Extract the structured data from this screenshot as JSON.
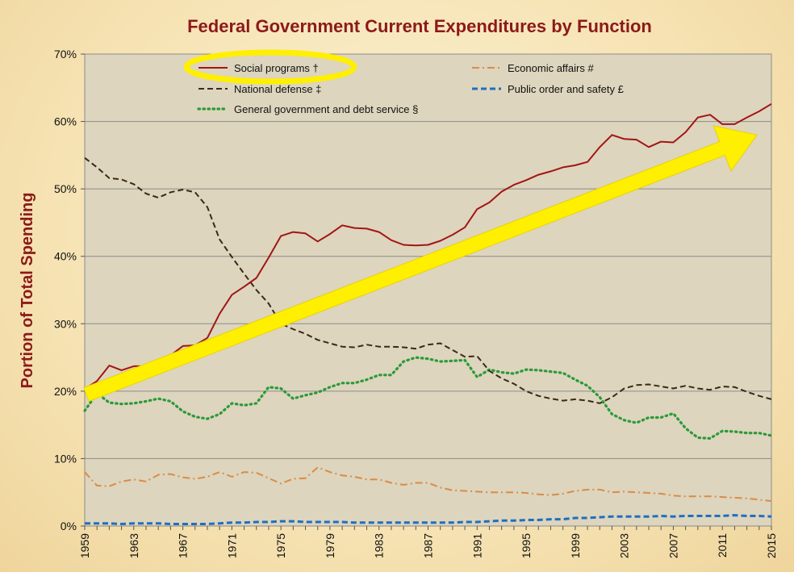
{
  "chart_data": {
    "type": "line",
    "title": "Federal Government Current Expenditures by Function",
    "ylabel": "Portion of Total Spending",
    "xlabel": "",
    "xlim": [
      1959,
      2015
    ],
    "ylim": [
      0,
      70
    ],
    "ytick_labels": [
      "0%",
      "10%",
      "20%",
      "30%",
      "40%",
      "50%",
      "60%",
      "70%"
    ],
    "xtick_labels": [
      "1959",
      "1963",
      "1967",
      "1971",
      "1975",
      "1979",
      "1983",
      "1987",
      "1991",
      "1995",
      "1999",
      "2003",
      "2007",
      "2011",
      "2015"
    ],
    "grid": "horizontal",
    "plot_background": "#ddd5bd",
    "x": [
      1959,
      1960,
      1961,
      1962,
      1963,
      1964,
      1965,
      1966,
      1967,
      1968,
      1969,
      1970,
      1971,
      1972,
      1973,
      1974,
      1975,
      1976,
      1977,
      1978,
      1979,
      1980,
      1981,
      1982,
      1983,
      1984,
      1985,
      1986,
      1987,
      1988,
      1989,
      1990,
      1991,
      1992,
      1993,
      1994,
      1995,
      1996,
      1997,
      1998,
      1999,
      2000,
      2001,
      2002,
      2003,
      2004,
      2005,
      2006,
      2007,
      2008,
      2009,
      2010,
      2011,
      2012,
      2013,
      2014,
      2015
    ],
    "series": [
      {
        "name": "Social programs †",
        "color": "#a31515",
        "dash": "solid",
        "values": [
          20.3,
          21.5,
          23.8,
          23.1,
          23.7,
          23.7,
          24.4,
          25.3,
          26.7,
          26.8,
          27.9,
          31.5,
          34.3,
          35.5,
          36.8,
          39.8,
          43.0,
          43.6,
          43.4,
          42.2,
          43.3,
          44.6,
          44.2,
          44.1,
          43.6,
          42.4,
          41.7,
          41.6,
          41.7,
          42.3,
          43.2,
          44.3,
          47.0,
          48.0,
          49.6,
          50.6,
          51.3,
          52.1,
          52.6,
          53.2,
          53.5,
          54.0,
          56.2,
          58.0,
          57.4,
          57.3,
          56.2,
          57.0,
          56.9,
          58.4,
          60.6,
          61.0,
          59.6,
          59.6,
          60.6,
          61.5,
          62.6
        ]
      },
      {
        "name": "National defense ‡",
        "color": "#3a2a18",
        "dash": "dashed",
        "values": [
          54.6,
          53.2,
          51.6,
          51.4,
          50.7,
          49.3,
          48.7,
          49.5,
          49.9,
          49.5,
          47.3,
          42.5,
          39.9,
          37.4,
          35.0,
          33.0,
          30.0,
          29.2,
          28.5,
          27.6,
          27.1,
          26.6,
          26.5,
          26.9,
          26.6,
          26.6,
          26.5,
          26.3,
          26.9,
          27.1,
          26.1,
          25.1,
          25.2,
          23.0,
          21.9,
          21.1,
          20.0,
          19.3,
          18.9,
          18.6,
          18.8,
          18.6,
          18.2,
          19.1,
          20.4,
          20.9,
          21.0,
          20.7,
          20.4,
          20.8,
          20.4,
          20.2,
          20.7,
          20.6,
          19.9,
          19.3,
          18.8
        ]
      },
      {
        "name": "General government and debt service §",
        "color": "#2a9a3a",
        "dash": "dotted",
        "values": [
          17.1,
          19.7,
          18.3,
          18.1,
          18.2,
          18.5,
          18.9,
          18.5,
          17.0,
          16.2,
          15.9,
          16.6,
          18.2,
          17.9,
          18.2,
          20.6,
          20.4,
          18.9,
          19.4,
          19.8,
          20.6,
          21.2,
          21.2,
          21.7,
          22.4,
          22.4,
          24.4,
          25.0,
          24.8,
          24.4,
          24.5,
          24.6,
          22.1,
          23.2,
          22.8,
          22.6,
          23.2,
          23.1,
          22.9,
          22.7,
          21.7,
          20.8,
          19.1,
          16.6,
          15.7,
          15.3,
          16.1,
          16.1,
          16.7,
          14.5,
          13.1,
          13.0,
          14.1,
          14.0,
          13.8,
          13.8,
          13.4
        ]
      },
      {
        "name": "Economic affairs #",
        "color": "#d98c4a",
        "dash": "dashdot",
        "values": [
          8.0,
          6.0,
          5.9,
          6.6,
          6.9,
          6.6,
          7.6,
          7.7,
          7.2,
          7.0,
          7.3,
          8.0,
          7.3,
          8.0,
          7.9,
          7.1,
          6.3,
          7.0,
          7.1,
          8.7,
          8.0,
          7.5,
          7.3,
          6.9,
          6.9,
          6.4,
          6.1,
          6.4,
          6.4,
          5.7,
          5.3,
          5.2,
          5.1,
          5.0,
          5.0,
          5.0,
          4.9,
          4.7,
          4.6,
          4.8,
          5.2,
          5.4,
          5.4,
          5.0,
          5.1,
          5.0,
          4.9,
          4.8,
          4.5,
          4.4,
          4.4,
          4.4,
          4.3,
          4.2,
          4.1,
          3.9,
          3.7
        ]
      },
      {
        "name": "Public order and safety £",
        "color": "#1f6fbf",
        "dash": "dashed",
        "values": [
          0.4,
          0.4,
          0.4,
          0.3,
          0.4,
          0.4,
          0.4,
          0.3,
          0.3,
          0.3,
          0.3,
          0.4,
          0.5,
          0.5,
          0.6,
          0.6,
          0.7,
          0.7,
          0.6,
          0.6,
          0.6,
          0.6,
          0.5,
          0.5,
          0.5,
          0.5,
          0.5,
          0.5,
          0.5,
          0.5,
          0.5,
          0.6,
          0.6,
          0.7,
          0.8,
          0.8,
          0.9,
          0.9,
          1.0,
          1.0,
          1.2,
          1.2,
          1.3,
          1.4,
          1.4,
          1.4,
          1.4,
          1.5,
          1.4,
          1.5,
          1.5,
          1.5,
          1.5,
          1.6,
          1.5,
          1.5,
          1.4
        ]
      }
    ],
    "legend": {
      "placement": "top",
      "entries": [
        "Social programs †",
        "Economic affairs #",
        "National defense ‡",
        "Public order and safety £",
        "General government and debt service §"
      ]
    },
    "annotations": {
      "trend_arrow": {
        "color": "#ffef00",
        "from": [
          1959,
          19.5
        ],
        "to": [
          2015,
          58
        ]
      },
      "legend_highlight_ellipse": {
        "color": "#ffef00",
        "target": "Social programs †"
      }
    }
  }
}
